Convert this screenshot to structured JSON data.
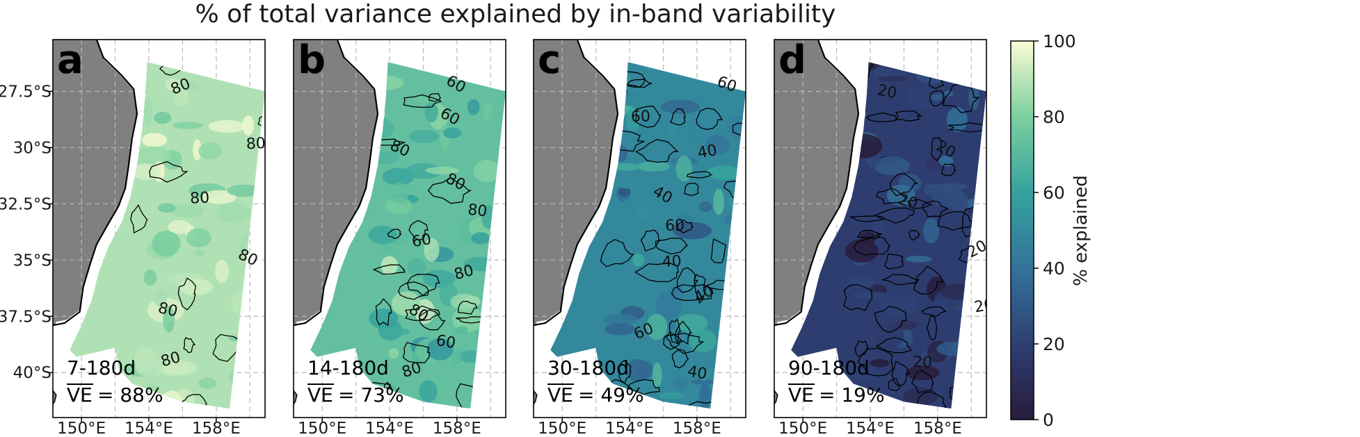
{
  "title": "% of total variance explained by in-band variability",
  "chart_data": {
    "type": "heatmap",
    "title": "% of total variance explained by in-band variability",
    "xlabel": "",
    "ylabel": "",
    "x_ticks": [
      "150°E",
      "154°E",
      "158°E"
    ],
    "x_tick_values": [
      150,
      154,
      158
    ],
    "y_ticks": [
      "27.5°S",
      "30°S",
      "32.5°S",
      "35°S",
      "37.5°S",
      "40°S"
    ],
    "y_tick_values": [
      -27.5,
      -30,
      -32.5,
      -35,
      -37.5,
      -40
    ],
    "xlim": [
      148.3,
      160.9
    ],
    "ylim": [
      -42.0,
      -25.2
    ],
    "grid": true,
    "colorbar": {
      "label": "% explained",
      "ticks": [
        "0",
        "20",
        "40",
        "60",
        "80",
        "100"
      ],
      "range": [
        0,
        100
      ],
      "colors": [
        "#281c3c",
        "#2e3f73",
        "#33739a",
        "#35a29e",
        "#7ccf9f",
        "#fbfbd4"
      ]
    },
    "panels": [
      {
        "letter": "a",
        "band": "7-180d",
        "ve_label": "VE",
        "ve_value": "= 88%",
        "mean_pct": 88,
        "contour_labels": [
          "80",
          "80",
          "80",
          "80",
          "80",
          "80"
        ]
      },
      {
        "letter": "b",
        "band": "14-180d",
        "ve_label": "VE",
        "ve_value": "= 73%",
        "mean_pct": 73,
        "contour_labels": [
          "60",
          "60",
          "80",
          "80",
          "80",
          "60",
          "80",
          "80",
          "60",
          "80"
        ]
      },
      {
        "letter": "c",
        "band": "30-180d",
        "ve_label": "VE",
        "ve_value": "= 49%",
        "mean_pct": 49,
        "contour_labels": [
          "60",
          "60",
          "40",
          "40",
          "60",
          "40",
          "40",
          "60",
          "40"
        ]
      },
      {
        "letter": "d",
        "band": "90-180d",
        "ve_label": "VE",
        "ve_value": "= 19%",
        "mean_pct": 19,
        "contour_labels": [
          "20",
          "20",
          "20",
          "20",
          "20",
          "20"
        ]
      }
    ]
  }
}
